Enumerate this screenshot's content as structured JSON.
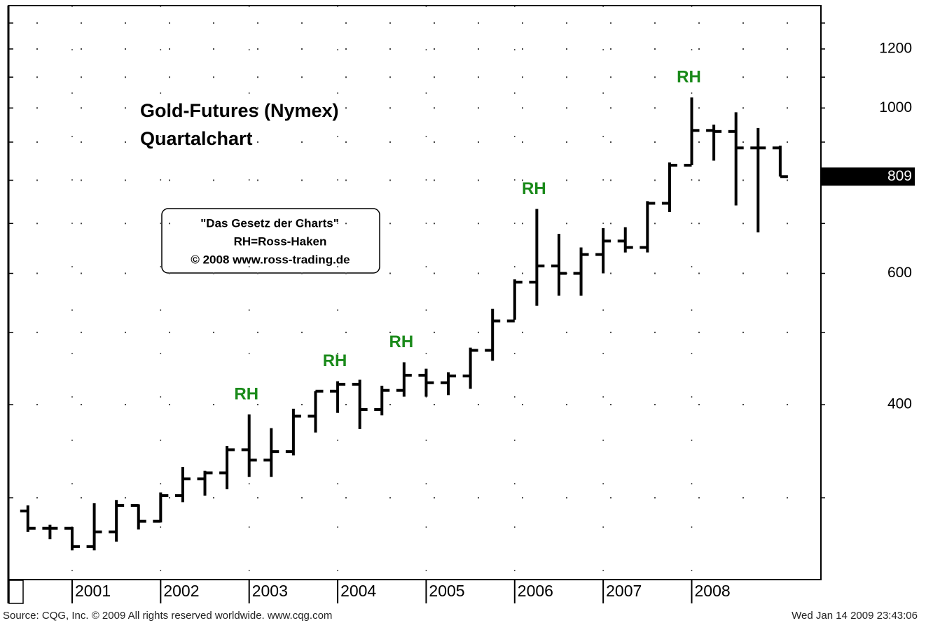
{
  "chart_data": {
    "type": "ohlc",
    "title": "Gold-Futures (Nymex)",
    "subtitle": "Quartalchart",
    "note_lines": [
      "\"Das Gesetz der Charts\"",
      "RH=Ross-Haken",
      "© 2008 www.ross-trading.de"
    ],
    "source": "Source: CQG, Inc. © 2009 All rights reserved worldwide. www.cqg.com",
    "timestamp": "Wed Jan 14 2009 23:43:06",
    "x": [
      2000.5,
      2000.75,
      2001.0,
      2001.25,
      2001.5,
      2001.75,
      2002.0,
      2002.25,
      2002.5,
      2002.75,
      2003.0,
      2003.25,
      2003.5,
      2003.75,
      2004.0,
      2004.25,
      2004.5,
      2004.75,
      2005.0,
      2005.25,
      2005.5,
      2005.75,
      2006.0,
      2006.25,
      2006.5,
      2006.75,
      2007.0,
      2007.25,
      2007.5,
      2007.75,
      2008.0,
      2008.25,
      2008.5,
      2008.75,
      2009.0
    ],
    "open": [
      288,
      273,
      273,
      258,
      270,
      293,
      279,
      302,
      318,
      324,
      348,
      337,
      346,
      386,
      417,
      426,
      394,
      418,
      438,
      428,
      437,
      473,
      518,
      584,
      614,
      600,
      636,
      663,
      650,
      745,
      838,
      933,
      930,
      884,
      884
    ],
    "high": [
      293,
      276,
      274,
      295,
      298,
      294,
      305,
      330,
      326,
      352,
      388,
      372,
      395,
      417,
      430,
      432,
      424,
      456,
      447,
      442,
      477,
      538,
      589,
      732,
      678,
      650,
      690,
      692,
      750,
      845,
      1033,
      950,
      987,
      940,
      890
    ],
    "low": [
      270,
      264,
      255,
      255,
      262,
      272,
      278,
      296,
      302,
      308,
      320,
      320,
      342,
      367,
      390,
      371,
      387,
      410,
      410,
      412,
      420,
      458,
      520,
      543,
      560,
      560,
      600,
      640,
      640,
      725,
      838,
      850,
      740,
      681,
      809
    ],
    "close": [
      273,
      273,
      258,
      270,
      293,
      279,
      302,
      318,
      324,
      348,
      337,
      346,
      386,
      417,
      426,
      394,
      418,
      438,
      428,
      437,
      473,
      518,
      584,
      614,
      600,
      636,
      663,
      650,
      745,
      838,
      933,
      930,
      884,
      884,
      809
    ],
    "color": "#000000",
    "annotations": [
      {
        "text": "RH",
        "x": 2003.0
      },
      {
        "text": "RH",
        "x": 2004.0
      },
      {
        "text": "RH",
        "x": 2004.75
      },
      {
        "text": "RH",
        "x": 2006.25
      },
      {
        "text": "RH",
        "x": 2008.0
      }
    ],
    "annotation_color": "#1a8a1a",
    "last_value": 809,
    "xlim": [
      2000.28,
      2009.46
    ],
    "xticks": [
      2001,
      2002,
      2003,
      2004,
      2005,
      2006,
      2007,
      2008
    ],
    "ylim": [
      233,
      1372
    ],
    "yticks": [
      400,
      600,
      1000,
      1200
    ],
    "minor_yticks": [
      300,
      500,
      700,
      800,
      900,
      1100,
      1300
    ],
    "log_y": true,
    "grid": true
  }
}
